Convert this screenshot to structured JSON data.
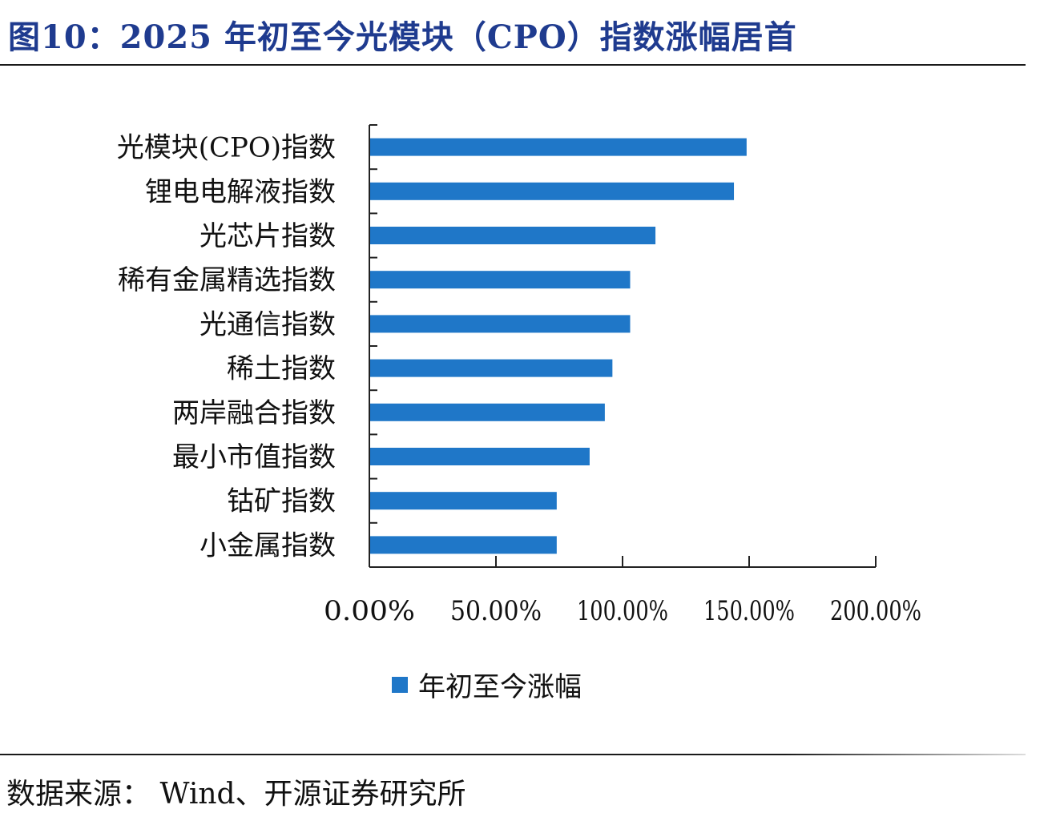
{
  "title": "图10：2025 年初至今光模块（CPO）指数涨幅居首",
  "source": "数据来源： Wind、开源证券研究所",
  "colors": {
    "bar": "#1f77c8",
    "title": "#1f3b8f"
  },
  "chart_data": {
    "type": "bar",
    "orientation": "horizontal",
    "categories": [
      "光模块(CPO)指数",
      "锂电电解液指数",
      "光芯片指数",
      "稀有金属精选指数",
      "光通信指数",
      "稀土指数",
      "两岸融合指数",
      "最小市值指数",
      "钴矿指数",
      "小金属指数"
    ],
    "series": [
      {
        "name": "年初至今涨幅",
        "values": [
          149,
          144,
          113,
          103,
          103,
          96,
          93,
          87,
          74,
          74
        ]
      }
    ],
    "xlim": [
      0,
      200
    ],
    "xticks": [
      0,
      50,
      100,
      150,
      200
    ],
    "xtick_labels": [
      "0.00%",
      "50.00%",
      "100.00%",
      "150.00%",
      "200.00%"
    ],
    "legend": "bottom",
    "grid": false
  }
}
